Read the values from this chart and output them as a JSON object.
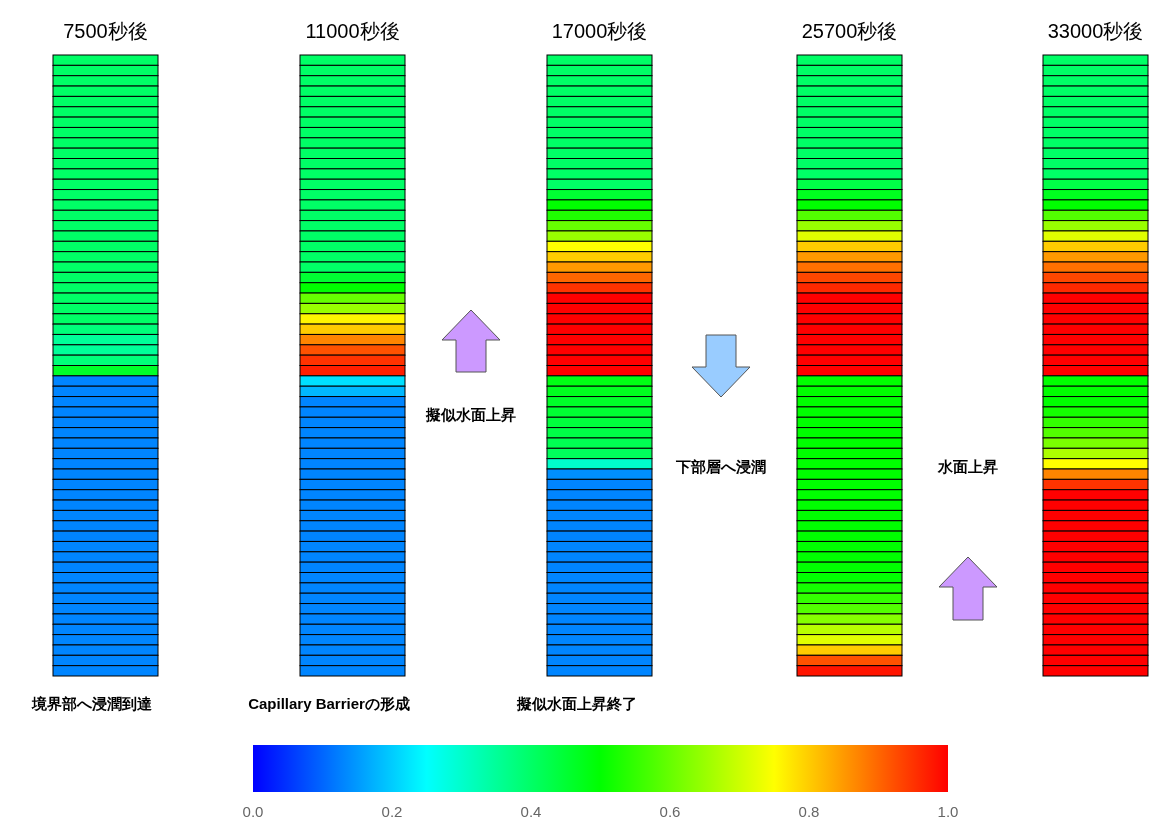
{
  "chart_data": {
    "type": "heatmap",
    "categories": [
      "7500秒後",
      "11000秒後",
      "17000秒後",
      "25700秒後",
      "33000秒後"
    ],
    "y_categories": [
      null,
      null,
      null,
      null,
      null,
      null,
      null,
      null,
      null,
      null,
      null,
      null,
      null,
      null,
      null,
      null,
      null,
      null,
      null,
      null,
      null,
      null,
      null,
      null,
      null,
      null,
      null,
      null,
      null,
      null,
      null,
      null,
      null,
      null,
      null,
      null,
      null,
      null,
      null,
      null,
      null,
      null,
      null,
      null,
      null,
      null,
      null,
      null,
      null,
      null,
      null,
      null,
      null,
      null,
      null,
      null,
      null,
      null,
      null,
      null
    ],
    "annotations": [
      "擬似水面上昇",
      "下部層へ浸潤",
      "水面上昇",
      "境界部へ浸潤到達",
      "Capillary Barrierの形成",
      "擬似水面上昇終了"
    ],
    "clim": [
      0,
      1
    ],
    "cticks": [
      {
        "value": 0,
        "label": "0.0"
      },
      {
        "value": 0.2,
        "label": "0.2"
      },
      {
        "value": 0.4,
        "label": "0.4"
      },
      {
        "value": 0.6,
        "label": "0.6"
      },
      {
        "value": 0.8,
        "label": "0.8"
      },
      {
        "value": 1,
        "label": "1.0"
      }
    ],
    "cells": [
      [
        0.4,
        0.4,
        0.4,
        0.4,
        0.4
      ],
      [
        0.4,
        0.4,
        0.4,
        0.4,
        0.4
      ],
      [
        0.4,
        0.4,
        0.4,
        0.4,
        0.4
      ],
      [
        0.4,
        0.4,
        0.4,
        0.4,
        0.4
      ],
      [
        0.4,
        0.4,
        0.4,
        0.4,
        0.4
      ],
      [
        0.4,
        0.4,
        0.4,
        0.4,
        0.4
      ],
      [
        0.4,
        0.4,
        0.4,
        0.4,
        0.4
      ],
      [
        0.4,
        0.4,
        0.4,
        0.4,
        0.4
      ],
      [
        0.4,
        0.4,
        0.4,
        0.4,
        0.4
      ],
      [
        0.4,
        0.4,
        0.4,
        0.4,
        0.4
      ],
      [
        0.4,
        0.4,
        0.4,
        0.4,
        0.4
      ],
      [
        0.4,
        0.4,
        0.4,
        0.4,
        0.4
      ],
      [
        0.4,
        0.4,
        0.4,
        0.43,
        0.43
      ],
      [
        0.4,
        0.4,
        0.45,
        0.47,
        0.47
      ],
      [
        0.4,
        0.4,
        0.5,
        0.5,
        0.5
      ],
      [
        0.4,
        0.4,
        0.53,
        0.58,
        0.58
      ],
      [
        0.4,
        0.4,
        0.6,
        0.65,
        0.65
      ],
      [
        0.4,
        0.4,
        0.65,
        0.72,
        0.72
      ],
      [
        0.4,
        0.4,
        0.75,
        0.8,
        0.8
      ],
      [
        0.4,
        0.4,
        0.8,
        0.85,
        0.85
      ],
      [
        0.4,
        0.4,
        0.85,
        0.89,
        0.89
      ],
      [
        0.4,
        0.45,
        0.9,
        0.93,
        0.93
      ],
      [
        0.4,
        0.5,
        0.95,
        0.96,
        0.96
      ],
      [
        0.4,
        0.6,
        1,
        1,
        1
      ],
      [
        0.4,
        0.65,
        1,
        1,
        1
      ],
      [
        0.4,
        0.76,
        1,
        1,
        1
      ],
      [
        0.38,
        0.8,
        1,
        1,
        1
      ],
      [
        0.35,
        0.87,
        1,
        1,
        1
      ],
      [
        0.35,
        0.92,
        1,
        1,
        1
      ],
      [
        0.38,
        0.95,
        1,
        1,
        1
      ],
      [
        0.46,
        0.97,
        1,
        1,
        1
      ],
      [
        0.13,
        0.22,
        0.48,
        0.5,
        0.5
      ],
      [
        0.13,
        0.18,
        0.47,
        0.5,
        0.5
      ],
      [
        0.13,
        0.13,
        0.46,
        0.5,
        0.5
      ],
      [
        0.13,
        0.13,
        0.45,
        0.5,
        0.52
      ],
      [
        0.13,
        0.13,
        0.44,
        0.5,
        0.55
      ],
      [
        0.13,
        0.13,
        0.43,
        0.5,
        0.58
      ],
      [
        0.13,
        0.13,
        0.42,
        0.5,
        0.62
      ],
      [
        0.13,
        0.13,
        0.41,
        0.5,
        0.67
      ],
      [
        0.13,
        0.13,
        0.3,
        0.5,
        0.75
      ],
      [
        0.13,
        0.13,
        0.14,
        0.5,
        0.87
      ],
      [
        0.13,
        0.13,
        0.13,
        0.5,
        0.95
      ],
      [
        0.13,
        0.13,
        0.13,
        0.5,
        1
      ],
      [
        0.13,
        0.13,
        0.13,
        0.5,
        1
      ],
      [
        0.13,
        0.13,
        0.13,
        0.5,
        1
      ],
      [
        0.13,
        0.13,
        0.13,
        0.5,
        1
      ],
      [
        0.13,
        0.13,
        0.13,
        0.5,
        1
      ],
      [
        0.13,
        0.13,
        0.13,
        0.5,
        1
      ],
      [
        0.13,
        0.13,
        0.13,
        0.5,
        1
      ],
      [
        0.13,
        0.13,
        0.13,
        0.5,
        1
      ],
      [
        0.13,
        0.13,
        0.13,
        0.5,
        1
      ],
      [
        0.13,
        0.13,
        0.13,
        0.52,
        1
      ],
      [
        0.13,
        0.13,
        0.13,
        0.55,
        1
      ],
      [
        0.13,
        0.13,
        0.13,
        0.58,
        1
      ],
      [
        0.13,
        0.13,
        0.13,
        0.63,
        1
      ],
      [
        0.13,
        0.13,
        0.13,
        0.68,
        1
      ],
      [
        0.13,
        0.13,
        0.13,
        0.72,
        1
      ],
      [
        0.13,
        0.13,
        0.13,
        0.8,
        1
      ],
      [
        0.13,
        0.13,
        0.13,
        0.92,
        1
      ],
      [
        0.13,
        0.13,
        0.13,
        0.98,
        1
      ]
    ]
  }
}
